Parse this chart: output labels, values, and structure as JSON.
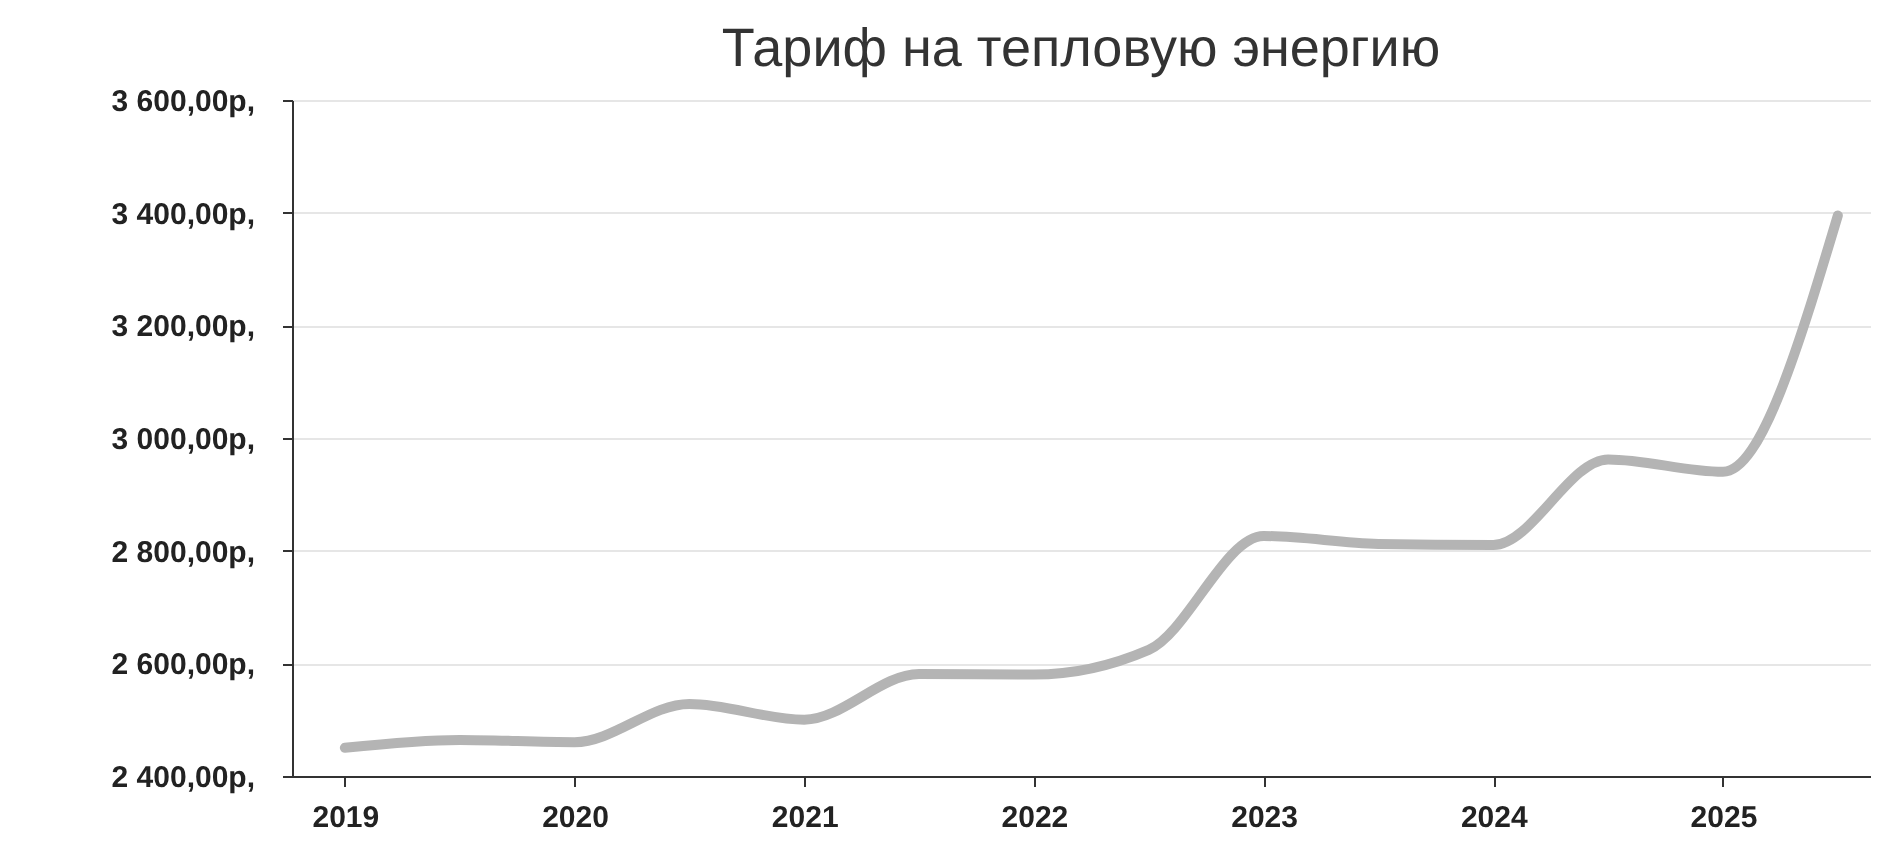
{
  "chart_data": {
    "type": "line",
    "title": "Тариф на тепловую энергию",
    "x": [
      2019,
      2019.5,
      2020,
      2020.5,
      2021,
      2021.5,
      2022,
      2022.5,
      2023,
      2023.5,
      2024,
      2024.5,
      2025,
      2025.5
    ],
    "series": [
      {
        "color": "#b4b4b4",
        "values": [
          2450,
          2464,
          2460,
          2528,
          2500,
          2581,
          2580,
          2624,
          2826,
          2812,
          2810,
          2962,
          2940,
          3395
        ]
      }
    ],
    "xlim": [
      2018.77,
      2025.64
    ],
    "xticks": [
      2019,
      2020,
      2021,
      2022,
      2023,
      2024,
      2025
    ],
    "ylim": [
      2400,
      3600
    ],
    "yticks": [
      {
        "value": 2400,
        "label": "2 400,00р,"
      },
      {
        "value": 2600,
        "label": "2 600,00р,"
      },
      {
        "value": 2800,
        "label": "2 800,00р,"
      },
      {
        "value": 3000,
        "label": "3 000,00р,"
      },
      {
        "value": 3200,
        "label": "3 200,00р,"
      },
      {
        "value": 3400,
        "label": "3 400,00р,"
      },
      {
        "value": 3600,
        "label": "3 600,00р,"
      }
    ],
    "grid": "y",
    "marker": "none",
    "line_style": "solid"
  }
}
